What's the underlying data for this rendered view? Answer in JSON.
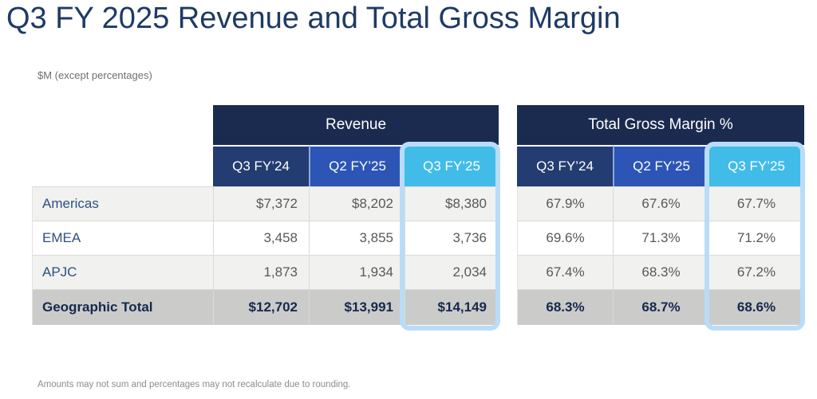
{
  "page": {
    "title": "Q3 FY 2025 Revenue and Total Gross Margin",
    "subtitle": "$M (except percentages)",
    "footnote": "Amounts may not sum and percentages may not recalculate due to rounding."
  },
  "colors": {
    "title_navy": "#1e3a66",
    "band_navy": "#1b2b4f",
    "col_q3fy24_blue": "#233d72",
    "col_q2fy25_blue": "#2c55b5",
    "col_q3fy25_cyan": "#41bce8",
    "highlight_pill_blue": "#b9dcf8",
    "row_alt_gray": "#f1f1ef",
    "row_white": "#ffffff",
    "total_row_gray": "#cbcbca",
    "value_text_gray": "#57585a",
    "label_text_blue": "#2d5080",
    "total_text_navy": "#15294d"
  },
  "chart_data": [
    {
      "type": "table",
      "title": "Revenue",
      "unit": "$M",
      "columns": [
        "Q3 FY’24",
        "Q2 FY’25",
        "Q3 FY’25"
      ],
      "highlighted_column": "Q3 FY’25",
      "rows": [
        {
          "label": "Americas",
          "values": [
            "$7,372",
            "$8,202",
            "$8,380"
          ]
        },
        {
          "label": "EMEA",
          "values": [
            "3,458",
            "3,855",
            "3,736"
          ]
        },
        {
          "label": "APJC",
          "values": [
            "1,873",
            "1,934",
            "2,034"
          ]
        },
        {
          "label": "Geographic Total",
          "values": [
            "$12,702",
            "$13,991",
            "$14,149"
          ],
          "is_total": true
        }
      ]
    },
    {
      "type": "table",
      "title": "Total Gross Margin %",
      "unit": "%",
      "columns": [
        "Q3 FY’24",
        "Q2 FY’25",
        "Q3 FY’25"
      ],
      "highlighted_column": "Q3 FY’25",
      "rows": [
        {
          "label": "Americas",
          "values": [
            "67.9%",
            "67.6%",
            "67.7%"
          ]
        },
        {
          "label": "EMEA",
          "values": [
            "69.6%",
            "71.3%",
            "71.2%"
          ]
        },
        {
          "label": "APJC",
          "values": [
            "67.4%",
            "68.3%",
            "67.2%"
          ]
        },
        {
          "label": "Geographic Total",
          "values": [
            "68.3%",
            "68.7%",
            "68.6%"
          ],
          "is_total": true
        }
      ]
    }
  ]
}
